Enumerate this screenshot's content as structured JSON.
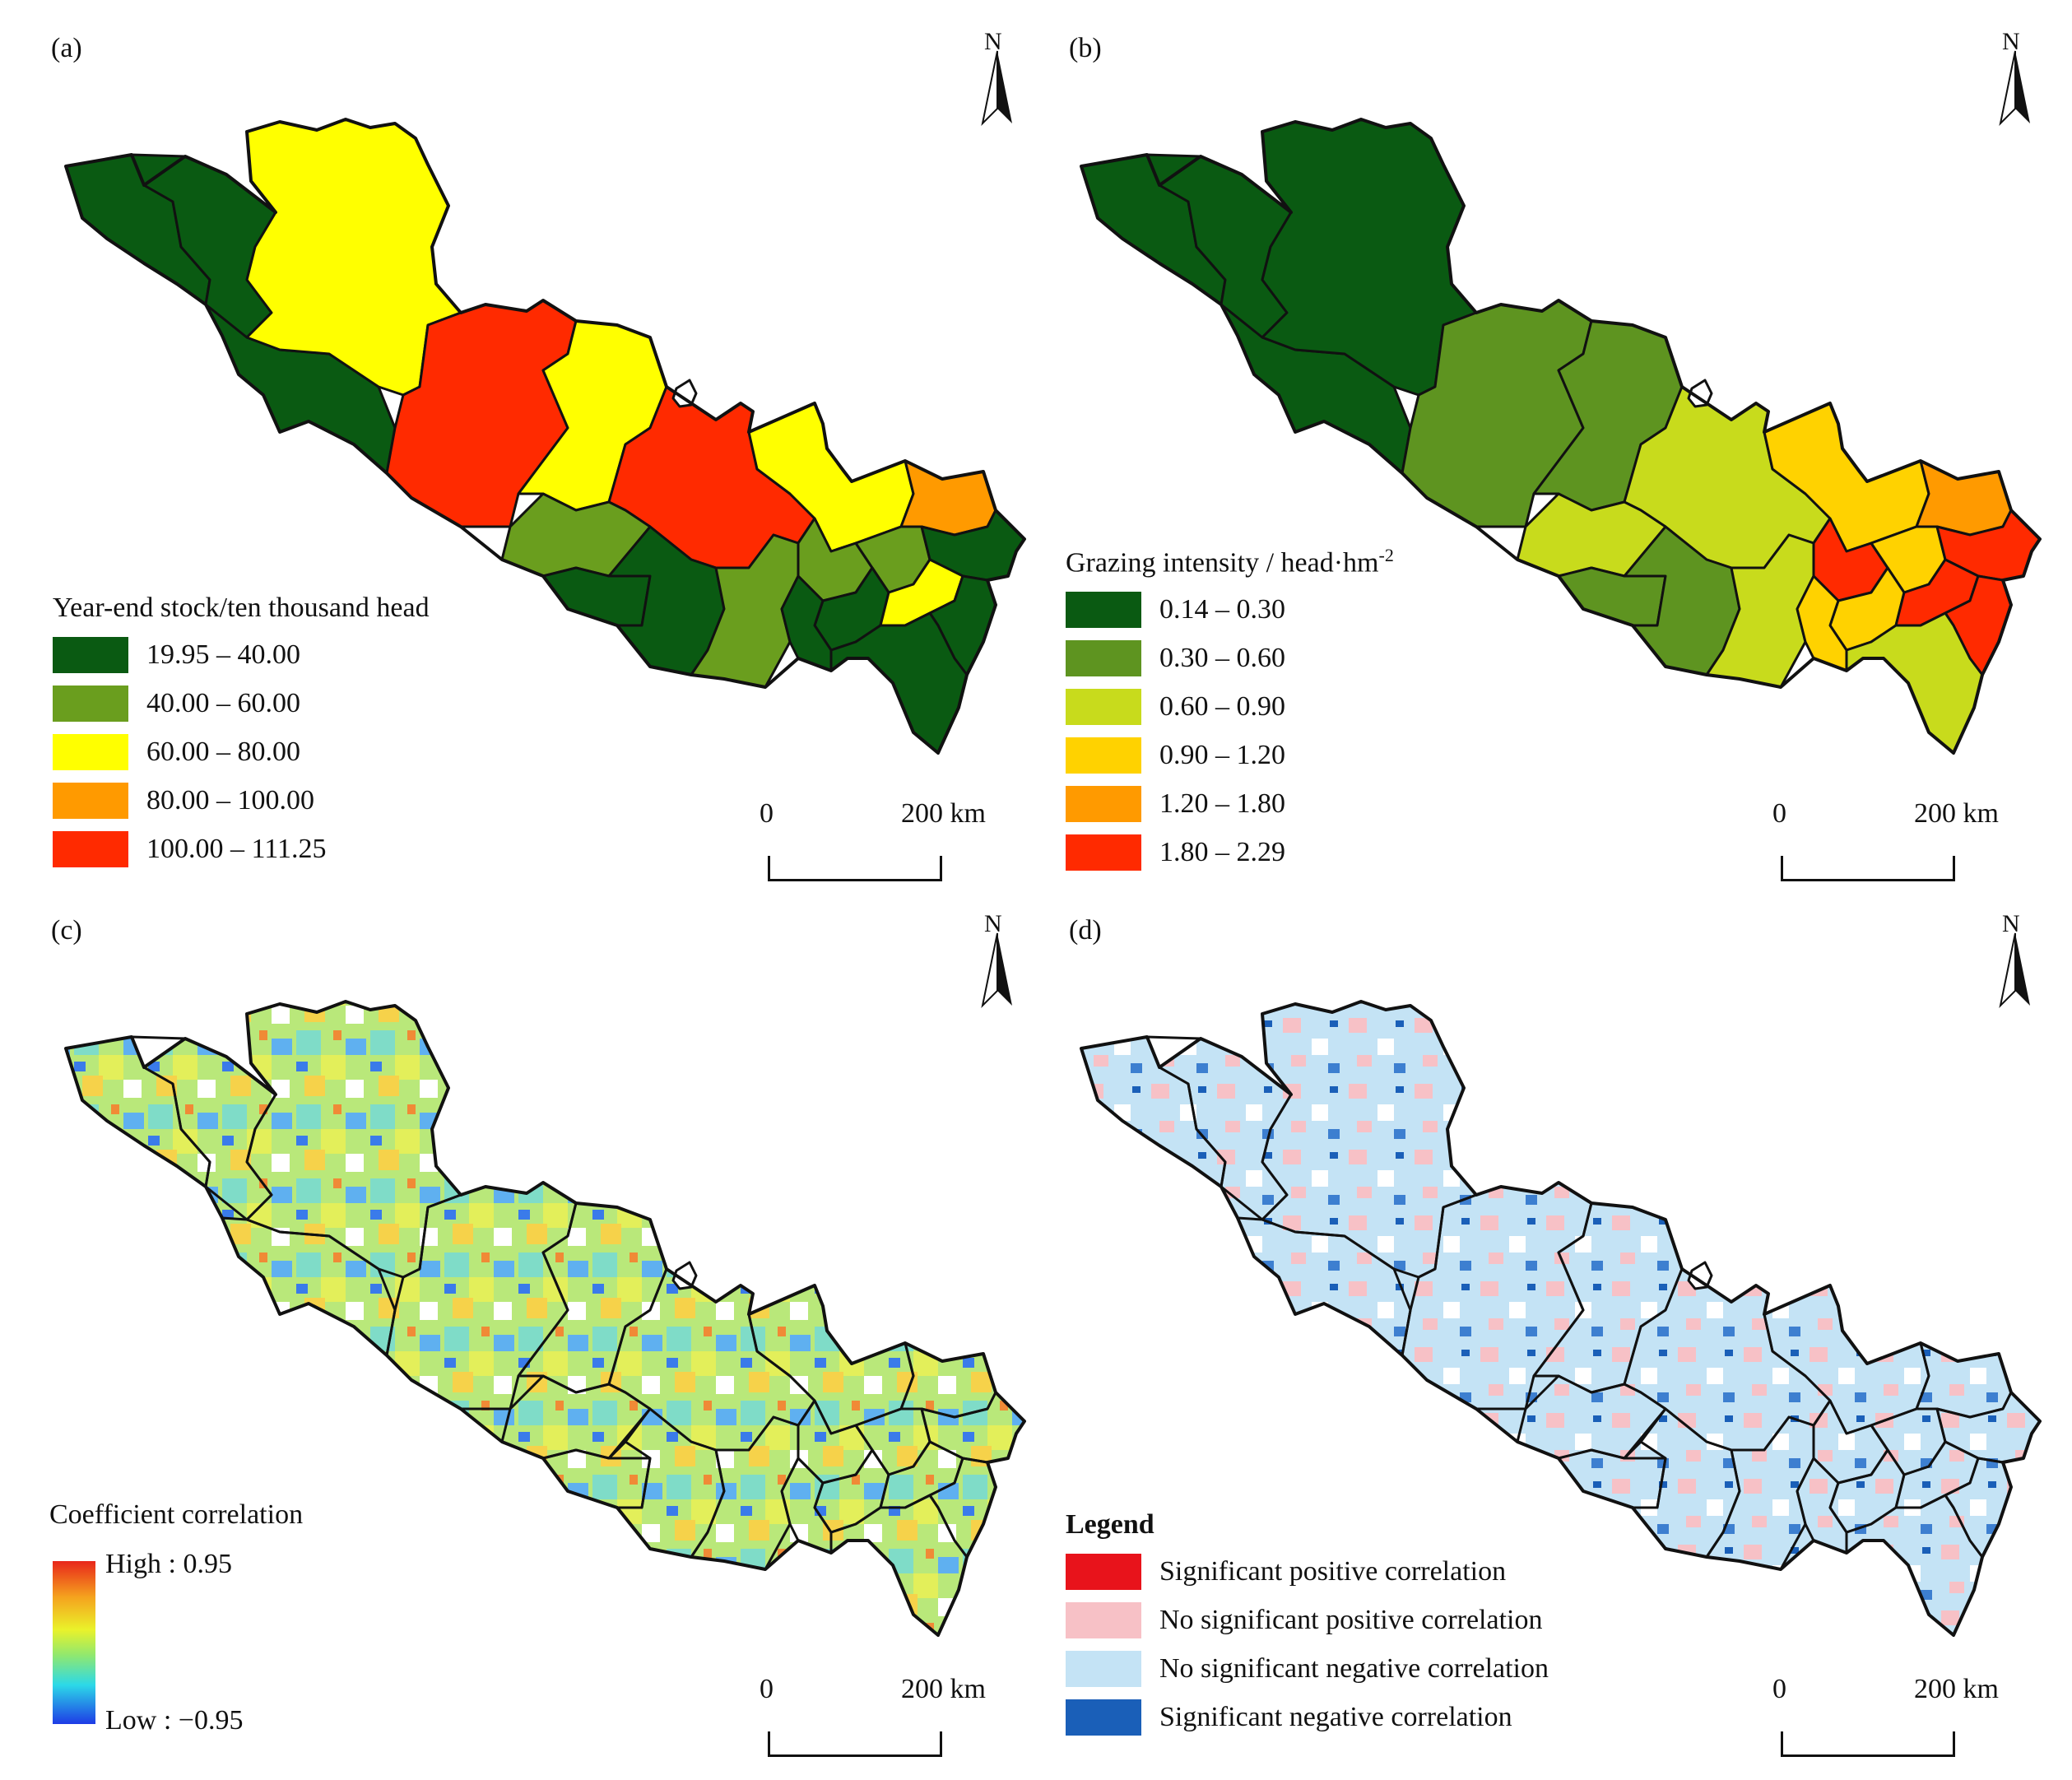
{
  "north_label": "N",
  "scale": {
    "start": "0",
    "end": "200 km"
  },
  "boundary_color": "#111111",
  "panels": [
    {
      "id": "a",
      "label": "(a)",
      "legend": {
        "title": "Year-end stock/ten thousand head",
        "classes": [
          {
            "label": "19.95 – 40.00",
            "color": "#0a5a12"
          },
          {
            "label": "40.00 – 60.00",
            "color": "#6a9e1e"
          },
          {
            "label": "60.00 – 80.00",
            "color": "#ffff00"
          },
          {
            "label": "80.00 – 100.00",
            "color": "#ff9a00"
          },
          {
            "label": "100.00 – 111.25",
            "color": "#ff2a00"
          }
        ]
      }
    },
    {
      "id": "b",
      "label": "(b)",
      "legend": {
        "title": "Grazing intensity / head·hm",
        "title_sup": "-2",
        "classes": [
          {
            "label": "0.14 – 0.30",
            "color": "#0a5a12"
          },
          {
            "label": "0.30 – 0.60",
            "color": "#5e9420"
          },
          {
            "label": "0.60 – 0.90",
            "color": "#c8db1c"
          },
          {
            "label": "0.90 – 1.20",
            "color": "#ffd200"
          },
          {
            "label": "1.20 – 1.80",
            "color": "#ff9a00"
          },
          {
            "label": "1.80 – 2.29",
            "color": "#ff2a00"
          }
        ]
      }
    },
    {
      "id": "c",
      "label": "(c)",
      "legend": {
        "title": "Coefficient correlation",
        "high": "High : 0.95",
        "low": "Low : −0.95"
      }
    },
    {
      "id": "d",
      "label": "(d)",
      "legend": {
        "title": "Legend",
        "classes": [
          {
            "label": "Significant positive correlation",
            "color": "#e8131b"
          },
          {
            "label": "No significant positive correlation",
            "color": "#f7c1c6"
          },
          {
            "label": "No significant negative correlation",
            "color": "#c4e3f5"
          },
          {
            "label": "Significant negative correlation",
            "color": "#1a5fb8"
          }
        ]
      }
    }
  ]
}
